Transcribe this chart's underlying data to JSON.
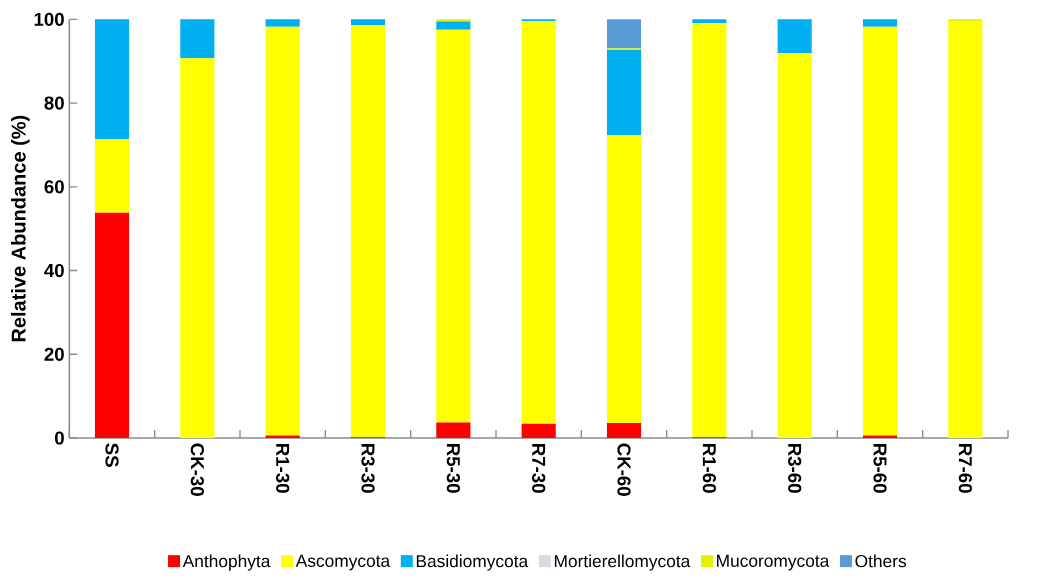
{
  "chart_data": {
    "type": "bar",
    "stacked": true,
    "ylabel": "Relative Abundance (%)",
    "categories": [
      "SS",
      "CK-30",
      "R1-30",
      "R3-30",
      "R5-30",
      "R7-30",
      "CK-60",
      "R1-60",
      "R3-60",
      "R5-60",
      "R7-60"
    ],
    "series": [
      {
        "name": "Anthophyta",
        "color": "#ff0000",
        "values": [
          53.8,
          0,
          0.6,
          0.2,
          3.7,
          3.4,
          3.6,
          0.2,
          0,
          0.6,
          0
        ]
      },
      {
        "name": "Ascomycota",
        "color": "#ffff00",
        "values": [
          17.6,
          90.7,
          97.6,
          98.4,
          93.8,
          96.2,
          68.7,
          98.9,
          91.9,
          97.6,
          99.6
        ]
      },
      {
        "name": "Basidiomycota",
        "color": "#00b0f0",
        "values": [
          28.6,
          9.3,
          1.8,
          1.4,
          2.0,
          0.4,
          20.4,
          0.9,
          8.1,
          1.8,
          0
        ]
      },
      {
        "name": "Mortierellomycota",
        "color": "#d6dce4",
        "values": [
          0,
          0,
          0,
          0,
          0,
          0,
          0,
          0,
          0,
          0,
          0
        ]
      },
      {
        "name": "Mucoromycota",
        "color": "#e2f200",
        "values": [
          0,
          0,
          0,
          0,
          0.5,
          0,
          0.4,
          0,
          0,
          0,
          0.4
        ]
      },
      {
        "name": "Others",
        "color": "#5b9bd5",
        "values": [
          0,
          0,
          0,
          0,
          0,
          0,
          6.9,
          0,
          0,
          0,
          0
        ]
      }
    ],
    "ylim": [
      0,
      100
    ],
    "yticks": [
      0,
      20,
      40,
      60,
      80,
      100
    ],
    "legend": "bottom"
  }
}
